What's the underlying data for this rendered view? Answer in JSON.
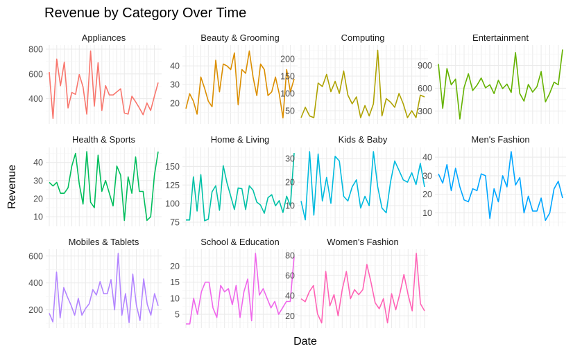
{
  "chart_data": {
    "type": "line",
    "title": "Revenue by Category Over Time",
    "xlabel": "Date",
    "ylabel": "Revenue",
    "facet_layout": {
      "columns": 4,
      "rows": 3
    },
    "grid": true,
    "legend": "none",
    "panels": [
      {
        "name": "Appliances",
        "color": "#F8766D",
        "ylim": [
          230,
          800
        ],
        "yticks": [
          400,
          600,
          800
        ],
        "values": [
          615,
          240,
          720,
          505,
          695,
          325,
          450,
          435,
          595,
          495,
          275,
          785,
          340,
          690,
          305,
          505,
          430,
          430,
          455,
          480,
          285,
          275,
          420,
          375,
          325,
          270,
          365,
          305,
          420,
          530
        ]
      },
      {
        "name": "Beauty & Grooming",
        "color": "#DB8E00",
        "ylim": [
          11,
          49
        ],
        "yticks": [
          20,
          30,
          40
        ],
        "values": [
          17,
          25,
          21,
          14,
          34,
          28,
          21,
          18,
          43,
          26,
          41,
          40,
          38,
          47,
          19,
          38,
          36,
          48,
          34,
          24,
          41,
          38,
          24,
          26,
          34,
          25,
          12,
          38,
          26,
          33
        ]
      },
      {
        "name": "Computing",
        "color": "#AEA200",
        "ylim": [
          24,
          228
        ],
        "yticks": [
          50,
          100,
          150,
          200
        ],
        "values": [
          30,
          60,
          35,
          30,
          130,
          120,
          155,
          105,
          135,
          100,
          165,
          95,
          70,
          90,
          30,
          65,
          35,
          70,
          225,
          35,
          85,
          75,
          60,
          100,
          70,
          30,
          50,
          30,
          95,
          90
        ]
      },
      {
        "name": "Entertainment",
        "color": "#64B200",
        "ylim": [
          185,
          1115
        ],
        "yticks": [
          300,
          600,
          900
        ],
        "values": [
          920,
          335,
          860,
          645,
          720,
          195,
          610,
          790,
          570,
          640,
          735,
          605,
          645,
          530,
          705,
          595,
          655,
          545,
          1070,
          530,
          430,
          650,
          550,
          620,
          820,
          420,
          535,
          680,
          645,
          1110
        ]
      },
      {
        "name": "Health & Sports",
        "color": "#00BD5C",
        "ylim": [
          7,
          46
        ],
        "yticks": [
          10,
          20,
          30,
          40
        ],
        "values": [
          29,
          27,
          29,
          23,
          23,
          26,
          38,
          45,
          28,
          17,
          46,
          18,
          15,
          44,
          24,
          30,
          23,
          16,
          38,
          33,
          8,
          32,
          23,
          43,
          24,
          24,
          8,
          10,
          33,
          46
        ]
      },
      {
        "name": "Home & Living",
        "color": "#00C1A7",
        "ylim": [
          75,
          170
        ],
        "yticks": [
          75,
          100,
          125,
          150
        ],
        "values": [
          78,
          78,
          136,
          90,
          139,
          77,
          79,
          116,
          124,
          91,
          151,
          128,
          110,
          92,
          121,
          120,
          92,
          124,
          118,
          102,
          98,
          87,
          108,
          112,
          97,
          104,
          88,
          110,
          97,
          168
        ]
      },
      {
        "name": "Kids & Baby",
        "color": "#00BADE",
        "ylim": [
          3,
          33
        ],
        "yticks": [
          10,
          20,
          30
        ],
        "values": [
          12,
          4,
          33,
          6,
          32,
          12,
          22,
          11,
          31,
          29,
          14,
          12,
          18,
          21,
          9,
          14,
          10,
          33,
          18,
          9,
          7,
          20,
          29,
          25,
          21,
          20,
          24,
          19,
          28,
          18
        ]
      },
      {
        "name": "Men's Fashion",
        "color": "#00A6FF",
        "ylim": [
          5,
          43
        ],
        "yticks": [
          10,
          20,
          30,
          40
        ],
        "values": [
          31,
          26,
          36,
          22,
          34,
          24,
          17,
          16,
          23,
          22,
          31,
          30,
          7,
          23,
          16,
          30,
          24,
          43,
          25,
          29,
          10,
          19,
          11,
          11,
          18,
          6,
          10,
          23,
          27,
          18
        ]
      },
      {
        "name": "Mobiles & Tablets",
        "color": "#B385FF",
        "ylim": [
          95,
          620
        ],
        "yticks": [
          200,
          400,
          600
        ],
        "values": [
          175,
          110,
          480,
          140,
          365,
          295,
          235,
          160,
          285,
          160,
          210,
          245,
          350,
          310,
          410,
          320,
          320,
          425,
          200,
          620,
          160,
          320,
          105,
          465,
          235,
          120,
          430,
          240,
          160,
          320,
          230
        ]
      },
      {
        "name": "School & Education",
        "color": "#EF67EB",
        "ylim": [
          2,
          24
        ],
        "yticks": [
          5,
          10,
          15,
          20
        ],
        "values": [
          2,
          2,
          10,
          5,
          12,
          15,
          15,
          7,
          4,
          14,
          12,
          13,
          8,
          14,
          4,
          12,
          16,
          3,
          24,
          11,
          13,
          10,
          7,
          9,
          5,
          7,
          9,
          9,
          23
        ]
      },
      {
        "name": "Women's Fashion",
        "color": "#FF63B6",
        "ylim": [
          12,
          82
        ],
        "yticks": [
          20,
          40,
          60,
          80
        ],
        "values": [
          37,
          34,
          44,
          50,
          22,
          13,
          64,
          30,
          41,
          20,
          46,
          64,
          37,
          46,
          41,
          46,
          71,
          53,
          33,
          27,
          37,
          13,
          42,
          26,
          42,
          61,
          41,
          25,
          82,
          32,
          25
        ]
      }
    ]
  }
}
